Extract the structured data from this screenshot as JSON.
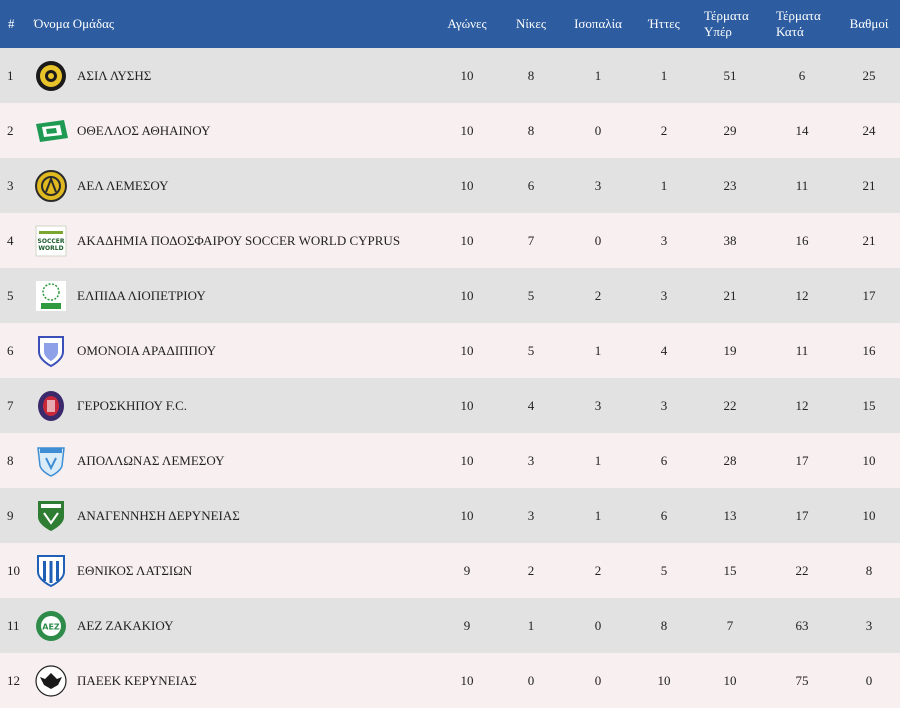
{
  "columns": {
    "rank": "#",
    "team": "Όνομα Ομάδας",
    "played": "Αγώνες",
    "wins": "Νίκες",
    "draws": "Ισοπαλία",
    "losses": "Ήττες",
    "goals_for": [
      "Τέρματα",
      "Υπέρ"
    ],
    "goals_against": [
      "Τέρματα",
      "Κατά"
    ],
    "points": "Βαθμοί"
  },
  "colors": {
    "header_bg": "#2d5da0",
    "row_odd": "#e2e2e2",
    "row_even": "#f8eff1"
  },
  "rows": [
    {
      "rank": "1",
      "team": "ΑΣΙΛ ΛΥΣΗΣ",
      "crest": "asil-lysis-crest-icon",
      "played": "10",
      "wins": "8",
      "draws": "1",
      "losses": "1",
      "gf": "51",
      "ga": "6",
      "pts": "25"
    },
    {
      "rank": "2",
      "team": "ΟΘΕΛΛΟΣ ΑΘΗΑΙΝΟΥ",
      "crest": "othellos-crest-icon",
      "played": "10",
      "wins": "8",
      "draws": "0",
      "losses": "2",
      "gf": "29",
      "ga": "14",
      "pts": "24"
    },
    {
      "rank": "3",
      "team": "ΑΕΛ ΛΕΜΕΣΟΥ",
      "crest": "ael-crest-icon",
      "played": "10",
      "wins": "6",
      "draws": "3",
      "losses": "1",
      "gf": "23",
      "ga": "11",
      "pts": "21"
    },
    {
      "rank": "4",
      "team": "ΑΚΑΔΗΜΙΑ ΠΟΔΟΣΦΑΙΡΟΥ SOCCER WORLD CYPRUS",
      "crest": "soccer-world-crest-icon",
      "crest_text": [
        "SOCCER",
        "WORLD"
      ],
      "played": "10",
      "wins": "7",
      "draws": "0",
      "losses": "3",
      "gf": "38",
      "ga": "16",
      "pts": "21"
    },
    {
      "rank": "5",
      "team": "ΕΛΠΙΔΑ ΛΙΟΠΕΤΡΙΟΥ",
      "crest": "elpida-crest-icon",
      "played": "10",
      "wins": "5",
      "draws": "2",
      "losses": "3",
      "gf": "21",
      "ga": "12",
      "pts": "17"
    },
    {
      "rank": "6",
      "team": "ΟΜΟΝΟΙΑ ΑΡΑΔΙΠΠΟΥ",
      "crest": "omonoia-aradippou-crest-icon",
      "played": "10",
      "wins": "5",
      "draws": "1",
      "losses": "4",
      "gf": "19",
      "ga": "11",
      "pts": "16"
    },
    {
      "rank": "7",
      "team": "ΓΕΡΟΣΚΗΠΟΥ F.C.",
      "crest": "geroskipou-crest-icon",
      "played": "10",
      "wins": "4",
      "draws": "3",
      "losses": "3",
      "gf": "22",
      "ga": "12",
      "pts": "15"
    },
    {
      "rank": "8",
      "team": "ΑΠΟΛΛΩΝΑΣ ΛΕΜΕΣΟΥ",
      "crest": "apollon-crest-icon",
      "played": "10",
      "wins": "3",
      "draws": "1",
      "losses": "6",
      "gf": "28",
      "ga": "17",
      "pts": "10"
    },
    {
      "rank": "9",
      "team": "ΑΝΑΓΕΝΝΗΣΗ ΔΕΡΥΝΕΙΑΣ",
      "crest": "anagennisi-crest-icon",
      "played": "10",
      "wins": "3",
      "draws": "1",
      "losses": "6",
      "gf": "13",
      "ga": "17",
      "pts": "10"
    },
    {
      "rank": "10",
      "team": "ΕΘΝΙΚΟΣ ΛΑΤΣΙΩΝ",
      "crest": "ethnikos-latsion-crest-icon",
      "played": "9",
      "wins": "2",
      "draws": "2",
      "losses": "5",
      "gf": "15",
      "ga": "22",
      "pts": "8"
    },
    {
      "rank": "11",
      "team": "ΑΕΖ ΖΑΚΑΚΙΟΥ",
      "crest": "aez-crest-icon",
      "crest_text": "ΑΕΖ",
      "played": "9",
      "wins": "1",
      "draws": "0",
      "losses": "8",
      "gf": "7",
      "ga": "63",
      "pts": "3"
    },
    {
      "rank": "12",
      "team": "ΠΑΕΕΚ ΚΕΡΥΝΕΙΑΣ",
      "crest": "paeek-crest-icon",
      "played": "10",
      "wins": "0",
      "draws": "0",
      "losses": "10",
      "gf": "10",
      "ga": "75",
      "pts": "0"
    }
  ]
}
